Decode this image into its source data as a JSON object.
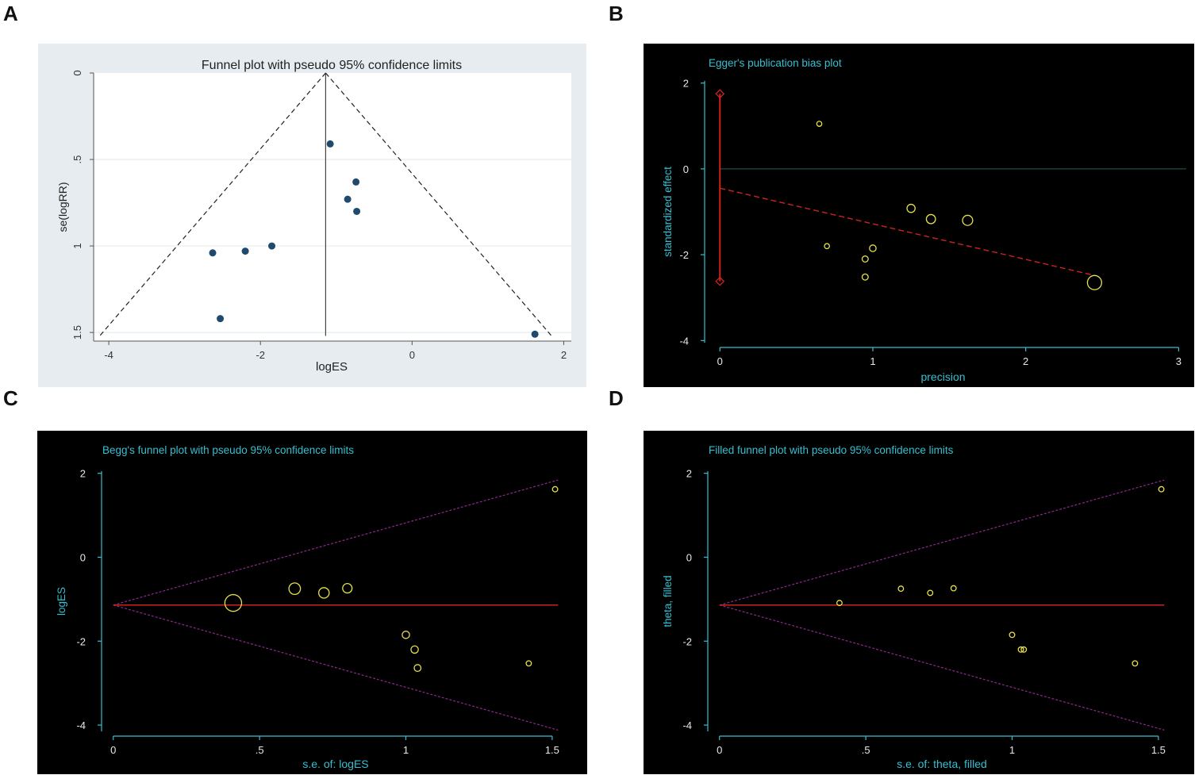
{
  "colors": {
    "panel_a_bg": "#e6ecef",
    "panel_a_plot_bg": "#ffffff",
    "panel_a_grid": "#e3ecef",
    "panel_a_point": "#1f4a6e",
    "dark_bg": "#000000",
    "cyan": "#37bfd0",
    "red": "#cc2222",
    "magenta": "#8a2a8a",
    "yellow": "#e6e04a",
    "grey_axis": "#555555"
  },
  "chart_data": [
    {
      "panel": "A",
      "type": "scatter",
      "title": "Funnel plot with pseudo 95% confidence limits",
      "xlabel": "logES",
      "ylabel": "se(logRR)",
      "xlim": [
        -4.2,
        2.1
      ],
      "ylim": [
        0,
        1.55
      ],
      "y_reversed": true,
      "x_ticks": [
        -4,
        -2,
        0,
        2
      ],
      "x_tick_labels": [
        "-4",
        "-2",
        "0",
        "2"
      ],
      "y_ticks": [
        0,
        0.5,
        1,
        1.5
      ],
      "y_tick_labels": [
        "0",
        ".5",
        "1",
        "1.5"
      ],
      "pooled_estimate": -1.14,
      "funnel_max_se": 1.52,
      "points": [
        {
          "x": -1.08,
          "y": 0.41
        },
        {
          "x": -0.74,
          "y": 0.63
        },
        {
          "x": -0.85,
          "y": 0.73
        },
        {
          "x": -0.73,
          "y": 0.8
        },
        {
          "x": -1.85,
          "y": 1.0
        },
        {
          "x": -2.2,
          "y": 1.03
        },
        {
          "x": -2.63,
          "y": 1.04
        },
        {
          "x": -2.53,
          "y": 1.42
        },
        {
          "x": 1.62,
          "y": 1.51
        }
      ]
    },
    {
      "panel": "B",
      "type": "scatter",
      "title": "Egger's publication bias plot",
      "xlabel": "precision",
      "ylabel": "standardized effect",
      "xlim": [
        -0.1,
        3.05
      ],
      "ylim": [
        -4.05,
        2.05
      ],
      "x_ticks": [
        0,
        1,
        2,
        3
      ],
      "x_tick_labels": [
        "0",
        "1",
        "2",
        "3"
      ],
      "y_ticks": [
        -4,
        -2,
        0,
        2
      ],
      "y_tick_labels": [
        "-4",
        "-2",
        "0",
        "2"
      ],
      "regression_line": {
        "intercept": -0.45,
        "slope": -0.83,
        "x_end": 2.45
      },
      "intercept_ci": [
        -2.62,
        1.75
      ],
      "points": [
        {
          "x": 0.65,
          "y": 1.05,
          "size": 1
        },
        {
          "x": 0.7,
          "y": -1.8,
          "size": 1
        },
        {
          "x": 0.95,
          "y": -2.1,
          "size": 1.2
        },
        {
          "x": 0.95,
          "y": -2.52,
          "size": 1.2
        },
        {
          "x": 1.0,
          "y": -1.85,
          "size": 1.3
        },
        {
          "x": 1.25,
          "y": -0.92,
          "size": 1.6
        },
        {
          "x": 1.38,
          "y": -1.17,
          "size": 1.8
        },
        {
          "x": 1.62,
          "y": -1.2,
          "size": 2.0
        },
        {
          "x": 2.45,
          "y": -2.65,
          "size": 2.8
        }
      ]
    },
    {
      "panel": "C",
      "type": "scatter",
      "title": "Begg's funnel plot with pseudo 95% confidence limits",
      "xlabel": "s.e. of: logES",
      "ylabel": "logES",
      "xlim": [
        -0.04,
        1.56
      ],
      "ylim": [
        -4.15,
        2.05
      ],
      "x_ticks": [
        0,
        0.5,
        1,
        1.5
      ],
      "x_tick_labels": [
        "0",
        ".5",
        "1",
        "1.5"
      ],
      "y_ticks": [
        -4,
        -2,
        0,
        2
      ],
      "y_tick_labels": [
        "-4",
        "-2",
        "0",
        "2"
      ],
      "pooled_estimate": -1.14,
      "funnel_max_se": 1.52,
      "points": [
        {
          "x": 0.41,
          "y": -1.09,
          "size": 3.2
        },
        {
          "x": 0.62,
          "y": -0.75,
          "size": 2.2
        },
        {
          "x": 0.72,
          "y": -0.85,
          "size": 2.0
        },
        {
          "x": 0.8,
          "y": -0.74,
          "size": 1.8
        },
        {
          "x": 1.0,
          "y": -1.85,
          "size": 1.4
        },
        {
          "x": 1.03,
          "y": -2.2,
          "size": 1.4
        },
        {
          "x": 1.04,
          "y": -2.64,
          "size": 1.3
        },
        {
          "x": 1.42,
          "y": -2.53,
          "size": 1.0
        },
        {
          "x": 1.51,
          "y": 1.62,
          "size": 1.0
        }
      ]
    },
    {
      "panel": "D",
      "type": "scatter",
      "title": "Filled funnel plot with pseudo 95% confidence limits",
      "xlabel": "s.e. of: theta, filled",
      "ylabel": "theta, filled",
      "xlim": [
        -0.04,
        1.56
      ],
      "ylim": [
        -4.15,
        2.05
      ],
      "x_ticks": [
        0,
        0.5,
        1,
        1.5
      ],
      "x_tick_labels": [
        "0",
        ".5",
        "1",
        "1.5"
      ],
      "y_ticks": [
        -4,
        -2,
        0,
        2
      ],
      "y_tick_labels": [
        "-4",
        "-2",
        "0",
        "2"
      ],
      "pooled_estimate": -1.14,
      "funnel_max_se": 1.52,
      "points": [
        {
          "x": 0.41,
          "y": -1.09,
          "size": 1
        },
        {
          "x": 0.62,
          "y": -0.75,
          "size": 1
        },
        {
          "x": 0.72,
          "y": -0.85,
          "size": 1
        },
        {
          "x": 0.8,
          "y": -0.74,
          "size": 1
        },
        {
          "x": 1.0,
          "y": -1.85,
          "size": 1
        },
        {
          "x": 1.03,
          "y": -2.2,
          "size": 1
        },
        {
          "x": 1.04,
          "y": -2.2,
          "size": 1
        },
        {
          "x": 1.42,
          "y": -2.53,
          "size": 1
        },
        {
          "x": 1.51,
          "y": 1.62,
          "size": 1
        }
      ]
    }
  ],
  "panel_labels": [
    "A",
    "B",
    "C",
    "D"
  ]
}
